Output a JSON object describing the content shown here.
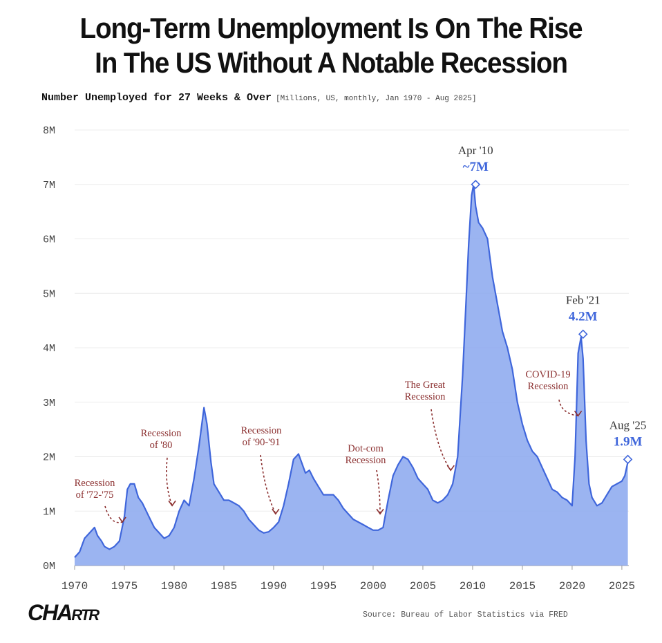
{
  "title_line1": "Long-Term Unemployment Is On The Rise",
  "title_line2": "In The US Without A Notable Recession",
  "subtitle_main": "Number Unemployed for 27 Weeks & Over",
  "subtitle_meta": "[Millions, US, monthly, Jan 1970 - Aug 2025]",
  "logo_big": "CHA",
  "logo_small": "RTR",
  "source": "Source: Bureau of Labor Statistics via FRED",
  "colors": {
    "series": "#3f66db",
    "fill": "#8aa7ef",
    "annotation": "#8b2f2f",
    "highlight": "#3f66db",
    "axis": "#444444"
  },
  "chart_data": {
    "type": "area",
    "title": "Long-Term Unemployment Is On The Rise In The US Without A Notable Recession",
    "subtitle": "Number Unemployed for 27 Weeks & Over",
    "ylabel": "Millions",
    "xlim": [
      1970,
      2025.7
    ],
    "ylim": [
      0,
      8
    ],
    "y_ticks": [
      0,
      1,
      2,
      3,
      4,
      5,
      6,
      7,
      8
    ],
    "y_tick_labels": [
      "0M",
      "1M",
      "2M",
      "3M",
      "4M",
      "5M",
      "6M",
      "7M",
      "8M"
    ],
    "x_ticks": [
      1970,
      1975,
      1980,
      1985,
      1990,
      1995,
      2000,
      2005,
      2010,
      2015,
      2020,
      2025
    ],
    "x_tick_labels": [
      "1970",
      "1975",
      "1980",
      "1985",
      "1990",
      "1995",
      "2000",
      "2005",
      "2010",
      "2015",
      "2020",
      "2025"
    ],
    "grid": true,
    "series": [
      {
        "name": "Unemployed 27 weeks & over",
        "x": [
          1970.0,
          1970.5,
          1971.0,
          1971.5,
          1972.0,
          1972.3,
          1972.7,
          1973.0,
          1973.5,
          1974.0,
          1974.5,
          1975.0,
          1975.3,
          1975.6,
          1976.0,
          1976.4,
          1976.8,
          1977.2,
          1977.6,
          1978.0,
          1978.5,
          1979.0,
          1979.5,
          1980.0,
          1980.5,
          1981.0,
          1981.5,
          1982.0,
          1982.5,
          1983.0,
          1983.3,
          1983.7,
          1984.0,
          1984.5,
          1985.0,
          1985.5,
          1986.0,
          1986.5,
          1987.0,
          1987.5,
          1988.0,
          1988.5,
          1989.0,
          1989.5,
          1990.0,
          1990.5,
          1991.0,
          1991.5,
          1992.0,
          1992.5,
          1992.8,
          1993.2,
          1993.6,
          1994.0,
          1994.5,
          1995.0,
          1995.5,
          1996.0,
          1996.5,
          1997.0,
          1997.5,
          1998.0,
          1998.5,
          1999.0,
          1999.5,
          2000.0,
          2000.5,
          2001.0,
          2001.5,
          2002.0,
          2002.5,
          2003.0,
          2003.5,
          2004.0,
          2004.5,
          2005.0,
          2005.5,
          2006.0,
          2006.5,
          2007.0,
          2007.5,
          2008.0,
          2008.5,
          2009.0,
          2009.3,
          2009.6,
          2009.9,
          2010.1,
          2010.3,
          2010.6,
          2011.0,
          2011.5,
          2012.0,
          2012.5,
          2013.0,
          2013.5,
          2014.0,
          2014.5,
          2015.0,
          2015.5,
          2016.0,
          2016.5,
          2017.0,
          2017.5,
          2018.0,
          2018.5,
          2019.0,
          2019.5,
          2020.0,
          2020.3,
          2020.6,
          2020.9,
          2021.1,
          2021.4,
          2021.7,
          2022.0,
          2022.5,
          2023.0,
          2023.5,
          2024.0,
          2024.5,
          2025.0,
          2025.3,
          2025.6
        ],
        "values": [
          0.15,
          0.25,
          0.5,
          0.6,
          0.7,
          0.55,
          0.45,
          0.35,
          0.3,
          0.35,
          0.45,
          0.9,
          1.4,
          1.5,
          1.5,
          1.25,
          1.15,
          1.0,
          0.85,
          0.7,
          0.6,
          0.5,
          0.55,
          0.7,
          1.0,
          1.2,
          1.1,
          1.6,
          2.2,
          2.9,
          2.6,
          1.9,
          1.5,
          1.35,
          1.2,
          1.2,
          1.15,
          1.1,
          1.0,
          0.85,
          0.75,
          0.65,
          0.6,
          0.62,
          0.7,
          0.8,
          1.1,
          1.5,
          1.95,
          2.05,
          1.9,
          1.7,
          1.75,
          1.6,
          1.45,
          1.3,
          1.3,
          1.3,
          1.2,
          1.05,
          0.95,
          0.85,
          0.8,
          0.75,
          0.7,
          0.65,
          0.65,
          0.7,
          1.2,
          1.65,
          1.85,
          2.0,
          1.95,
          1.8,
          1.6,
          1.5,
          1.4,
          1.2,
          1.15,
          1.2,
          1.3,
          1.5,
          2.0,
          3.5,
          4.7,
          5.9,
          6.8,
          7.0,
          6.6,
          6.3,
          6.2,
          6.0,
          5.3,
          4.8,
          4.3,
          4.0,
          3.6,
          3.0,
          2.6,
          2.3,
          2.1,
          2.0,
          1.8,
          1.6,
          1.4,
          1.35,
          1.25,
          1.2,
          1.1,
          2.0,
          3.9,
          4.2,
          3.8,
          2.3,
          1.5,
          1.25,
          1.1,
          1.15,
          1.3,
          1.45,
          1.5,
          1.55,
          1.65,
          1.9
        ]
      }
    ],
    "annotations": [
      {
        "label_line1": "Recession",
        "label_line2": "of '72-'75",
        "x": 1974.8,
        "y": 0.8
      },
      {
        "label_line1": "Recession",
        "label_line2": "of '80",
        "x": 1979.8,
        "y": 1.1
      },
      {
        "label_line1": "Recession",
        "label_line2": "of '90-'91",
        "x": 1990.2,
        "y": 0.95
      },
      {
        "label_line1": "Dot-com",
        "label_line2": "Recession",
        "x": 2000.7,
        "y": 0.95
      },
      {
        "label_line1": "The Great",
        "label_line2": "Recession",
        "x": 2007.8,
        "y": 1.75
      },
      {
        "label_line1": "COVID-19",
        "label_line2": "Recession",
        "x": 2020.6,
        "y": 2.75
      }
    ],
    "highlights": [
      {
        "date": "Apr '10",
        "value_label": "~7M",
        "x": 2010.3,
        "y": 7.0
      },
      {
        "date": "Feb '21",
        "value_label": "4.2M",
        "x": 2021.1,
        "y": 4.25
      },
      {
        "date": "Aug '25",
        "value_label": "1.9M",
        "x": 2025.6,
        "y": 1.95
      }
    ]
  }
}
